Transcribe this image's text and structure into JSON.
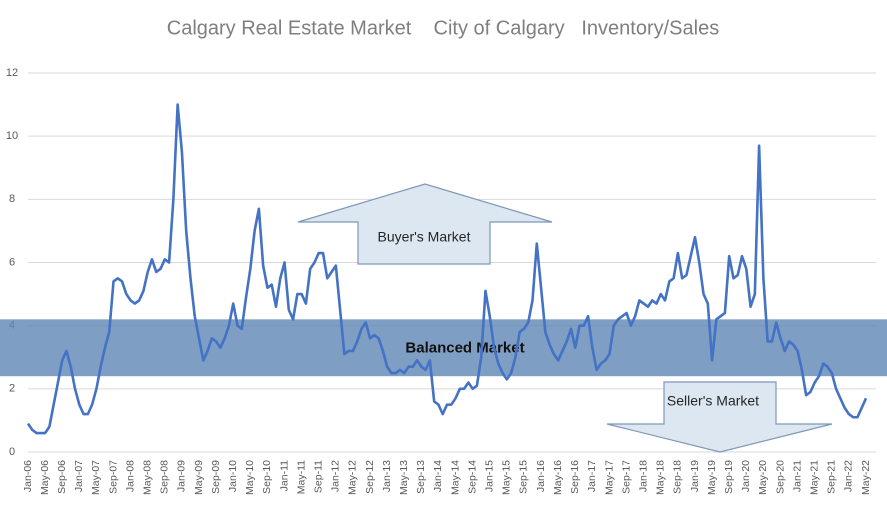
{
  "chart_data": {
    "type": "line",
    "title": "Calgary Real Estate Market    City of Calgary   Inventory/Sales",
    "categories": [
      "Jan-06",
      null,
      null,
      null,
      "May-06",
      null,
      null,
      null,
      "Sep-06",
      null,
      null,
      null,
      "Jan-07",
      null,
      null,
      null,
      "May-07",
      null,
      null,
      null,
      "Sep-07",
      null,
      null,
      null,
      "Jan-08",
      null,
      null,
      null,
      "May-08",
      null,
      null,
      null,
      "Sep-08",
      null,
      null,
      null,
      "Jan-09",
      null,
      null,
      null,
      "May-09",
      null,
      null,
      null,
      "Sep-09",
      null,
      null,
      null,
      "Jan-10",
      null,
      null,
      null,
      "May-10",
      null,
      null,
      null,
      "Sep-10",
      null,
      null,
      null,
      "Jan-11",
      null,
      null,
      null,
      "May-11",
      null,
      null,
      null,
      "Sep-11",
      null,
      null,
      null,
      "Jan-12",
      null,
      null,
      null,
      "May-12",
      null,
      null,
      null,
      "Sep-12",
      null,
      null,
      null,
      "Jan-13",
      null,
      null,
      null,
      "May-13",
      null,
      null,
      null,
      "Sep-13",
      null,
      null,
      null,
      "Jan-14",
      null,
      null,
      null,
      "May-14",
      null,
      null,
      null,
      "Sep-14",
      null,
      null,
      null,
      "Jan-15",
      null,
      null,
      null,
      "May-15",
      null,
      null,
      null,
      "Sep-15",
      null,
      null,
      null,
      "Jan-16",
      null,
      null,
      null,
      "May-16",
      null,
      null,
      null,
      "Sep-16",
      null,
      null,
      null,
      "Jan-17",
      null,
      null,
      null,
      "May-17",
      null,
      null,
      null,
      "Sep-17",
      null,
      null,
      null,
      "Jan-18",
      null,
      null,
      null,
      "May-18",
      null,
      null,
      null,
      "Sep-18",
      null,
      null,
      null,
      "Jan-19",
      null,
      null,
      null,
      "May-19",
      null,
      null,
      null,
      "Sep-19",
      null,
      null,
      null,
      "Jan-20",
      null,
      null,
      null,
      "May-20",
      null,
      null,
      null,
      "Sep-20",
      null,
      null,
      null,
      "Jan-21",
      null,
      null,
      null,
      "May-21",
      null,
      null,
      null,
      "Sep-21",
      null,
      null,
      null,
      "Jan-22",
      null,
      null,
      null,
      "May-22"
    ],
    "series": [
      {
        "name": "Inventory/Sales",
        "color": "#4472c4",
        "values": [
          0.9,
          0.7,
          0.6,
          0.6,
          0.6,
          0.8,
          1.5,
          2.2,
          2.9,
          3.2,
          2.7,
          2.0,
          1.5,
          1.2,
          1.2,
          1.5,
          2.0,
          2.7,
          3.3,
          3.8,
          5.4,
          5.5,
          5.4,
          5.0,
          4.8,
          4.7,
          4.8,
          5.1,
          5.7,
          6.1,
          5.7,
          5.8,
          6.1,
          6.0,
          8.0,
          11.0,
          9.5,
          7.0,
          5.5,
          4.3,
          3.6,
          2.9,
          3.2,
          3.6,
          3.5,
          3.3,
          3.6,
          4.0,
          4.7,
          4.0,
          3.9,
          4.9,
          5.8,
          7.0,
          7.7,
          5.9,
          5.2,
          5.3,
          4.6,
          5.5,
          6.0,
          4.5,
          4.2,
          5.0,
          5.0,
          4.7,
          5.8,
          6.0,
          6.3,
          6.3,
          5.5,
          5.7,
          5.9,
          4.5,
          3.1,
          3.2,
          3.2,
          3.5,
          3.9,
          4.1,
          3.6,
          3.7,
          3.6,
          3.2,
          2.7,
          2.5,
          2.5,
          2.6,
          2.5,
          2.7,
          2.7,
          2.9,
          2.7,
          2.6,
          2.9,
          1.6,
          1.5,
          1.2,
          1.5,
          1.5,
          1.7,
          2.0,
          2.0,
          2.2,
          2.0,
          2.1,
          3.0,
          5.1,
          4.3,
          3.3,
          2.8,
          2.5,
          2.3,
          2.5,
          3.0,
          3.8,
          3.9,
          4.1,
          4.8,
          6.6,
          5.2,
          3.8,
          3.4,
          3.1,
          2.9,
          3.2,
          3.5,
          3.9,
          3.3,
          4.0,
          4.0,
          4.3,
          3.3,
          2.6,
          2.8,
          2.9,
          3.1,
          4.0,
          4.2,
          4.3,
          4.4,
          4.0,
          4.3,
          4.8,
          4.7,
          4.6,
          4.8,
          4.7,
          5.0,
          4.8,
          5.4,
          5.5,
          6.3,
          5.5,
          5.6,
          6.2,
          6.8,
          6.0,
          5.0,
          4.7,
          2.9,
          4.2,
          4.3,
          4.4,
          6.2,
          5.5,
          5.6,
          6.2,
          5.8,
          4.6,
          5.0,
          9.7,
          5.5,
          3.5,
          3.5,
          4.1,
          3.6,
          3.2,
          3.5,
          3.4,
          3.2,
          2.6,
          1.8,
          1.9,
          2.2,
          2.4,
          2.8,
          2.7,
          2.5,
          2.0,
          1.7,
          1.4,
          1.2,
          1.1,
          1.1,
          1.4,
          1.7
        ]
      }
    ],
    "ylim": [
      0,
      12
    ],
    "yticks": [
      0,
      2,
      4,
      6,
      8,
      10,
      12
    ],
    "grid": true,
    "band": {
      "label": "Balanced Market",
      "range": [
        2.4,
        4.2
      ]
    },
    "annotations": [
      "Buyer's Market",
      "Seller's Market"
    ]
  }
}
